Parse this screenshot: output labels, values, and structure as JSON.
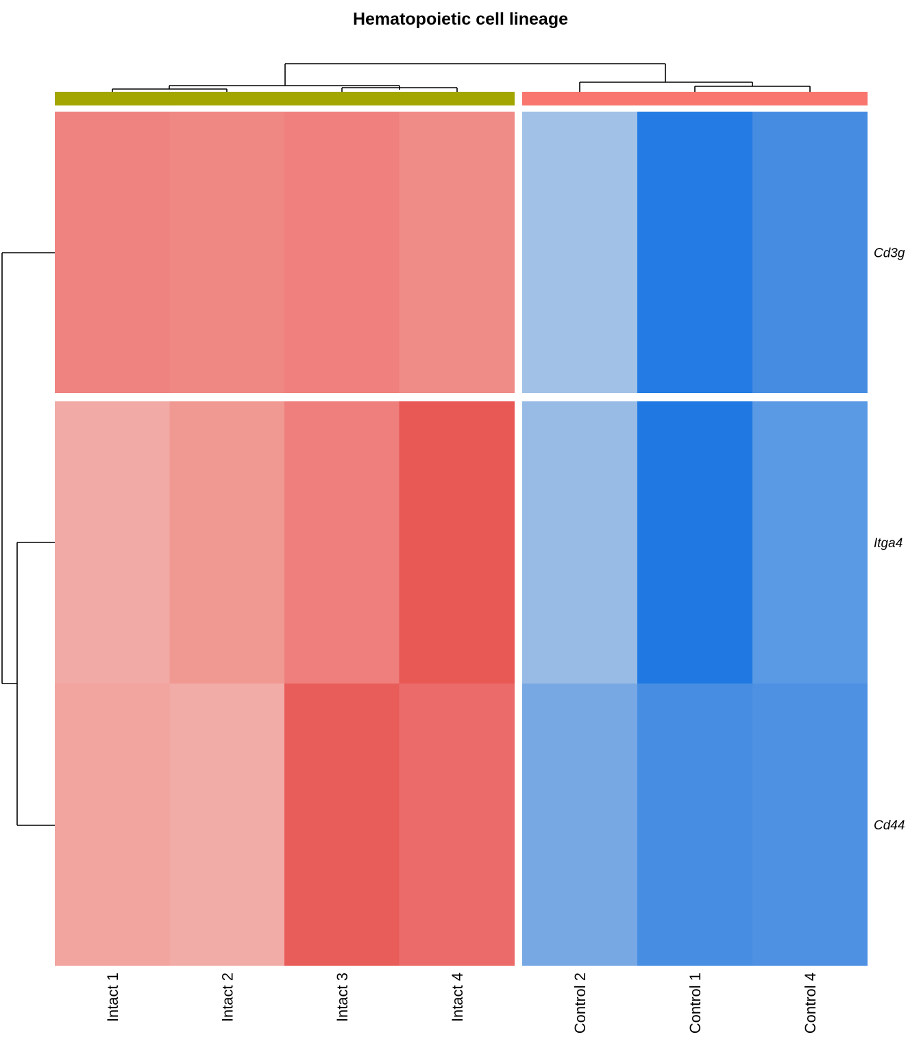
{
  "chart_data": {
    "type": "heatmap",
    "title": "Hematopoietic cell lineage",
    "columns": [
      "Intact 1",
      "Intact 2",
      "Intact 3",
      "Intact 4",
      "Control 2",
      "Control 1",
      "Control 4"
    ],
    "column_groups": [
      {
        "color": "#a3a500",
        "columns": [
          "Intact 1",
          "Intact 2",
          "Intact 3",
          "Intact 4"
        ]
      },
      {
        "color": "#f8766d",
        "columns": [
          "Control 2",
          "Control 1",
          "Control 4"
        ]
      }
    ],
    "rows": [
      "Cd3g",
      "Itga4",
      "Cd44"
    ],
    "row_split": [
      [
        "Cd3g"
      ],
      [
        "Itga4",
        "Cd44"
      ]
    ],
    "cell_colors": [
      [
        "#ee837f",
        "#ef8783",
        "#ef807d",
        "#f08c87",
        "#a1c1e7",
        "#237be3",
        "#468de2"
      ],
      [
        "#f2aaa6",
        "#f09993",
        "#ee7f7c",
        "#e85855",
        "#98bbe6",
        "#2079e2",
        "#5a99e3"
      ],
      [
        "#f2a49f",
        "#f2aca7",
        "#e85d5a",
        "#ea6b69",
        "#77a8e4",
        "#478de2",
        "#4e90e2"
      ]
    ],
    "colors": {
      "high": "#e85855",
      "low": "#2079e2",
      "dendrogram": "#000000"
    }
  }
}
